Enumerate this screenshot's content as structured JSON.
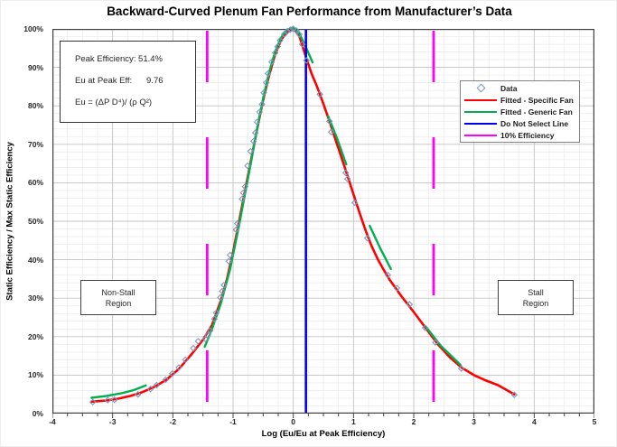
{
  "title": "Backward-Curved Plenum Fan Performance from Manufacturer’s Data",
  "annotations": {
    "peak_efficiency": "Peak Efficiency: 51.4%",
    "eu_at_peak": "Eu at Peak Eff:      9.76",
    "formula": "Eu = (ΔP D⁴)/ (ρ Q²)",
    "non_stall_line1": "Non-Stall",
    "non_stall_line2": "Region",
    "stall_line1": "Stall",
    "stall_line2": "Region"
  },
  "legend": {
    "items": [
      {
        "label": "Data",
        "marker": "diamond",
        "color": "#7e97bf"
      },
      {
        "label": "Fitted - Specific Fan",
        "marker": "line",
        "color": "#ff0000"
      },
      {
        "label": "Fitted - Generic Fan",
        "marker": "line",
        "color": "#00b050"
      },
      {
        "label": "Do Not Select Line",
        "marker": "line",
        "color": "#0000f0"
      },
      {
        "label": "10% Efficiency",
        "marker": "line",
        "color": "#ff00ff"
      }
    ]
  },
  "chart_data": {
    "type": "scatter",
    "title": "Backward-Curved Plenum Fan Performance from Manufacturer’s Data",
    "xlabel": "Log (Eu/Eu at Peak Efficiency)",
    "ylabel": "Static Efficiency / Max Static Efficiency",
    "xlim": [
      -4,
      5
    ],
    "ylim_percent": [
      0,
      100
    ],
    "x_ticks": [
      -4,
      -3,
      -2,
      -1,
      0,
      1,
      2,
      3,
      4,
      5
    ],
    "y_ticks": [
      "0%",
      "10%",
      "20%",
      "30%",
      "40%",
      "50%",
      "60%",
      "70%",
      "80%",
      "90%",
      "100%"
    ],
    "grid": {
      "major_x": 1,
      "minor_x": 0.25,
      "major_y": 10,
      "minor_y": 2,
      "major_color": "#c3c3c3",
      "minor_color": "#ececec"
    },
    "annotations": {
      "peak_efficiency_pct": 51.4,
      "eu_at_peak_eff": 9.76
    },
    "series": [
      {
        "name": "Data",
        "type": "scatter",
        "color": "#7e97bf",
        "points": [
          [
            -3.33,
            3.0
          ],
          [
            -3.08,
            3.5
          ],
          [
            -2.97,
            3.6
          ],
          [
            -2.58,
            5.0
          ],
          [
            -2.37,
            6.4
          ],
          [
            -2.27,
            7.4
          ],
          [
            -2.12,
            8.8
          ],
          [
            -2.01,
            10.4
          ],
          [
            -1.9,
            12.0
          ],
          [
            -1.79,
            14.0
          ],
          [
            -1.66,
            17.0
          ],
          [
            -1.58,
            18.8
          ],
          [
            -1.46,
            19.4
          ],
          [
            -1.42,
            20.4
          ],
          [
            -1.38,
            21.6
          ],
          [
            -1.31,
            24.6
          ],
          [
            -1.28,
            26.2
          ],
          [
            -1.21,
            30.2
          ],
          [
            -1.18,
            31.8
          ],
          [
            -1.15,
            33.4
          ],
          [
            -1.07,
            39.6
          ],
          [
            -1.05,
            41.2
          ],
          [
            -0.95,
            47.8
          ],
          [
            -0.93,
            49.4
          ],
          [
            -0.85,
            55.8
          ],
          [
            -0.83,
            57.4
          ],
          [
            -0.8,
            59.0
          ],
          [
            -0.76,
            64.4
          ],
          [
            -0.71,
            68.2
          ],
          [
            -0.66,
            70.8
          ],
          [
            -0.63,
            73.0
          ],
          [
            -0.6,
            75.8
          ],
          [
            -0.56,
            78.4
          ],
          [
            -0.52,
            80.4
          ],
          [
            -0.49,
            83.4
          ],
          [
            -0.45,
            86.0
          ],
          [
            -0.42,
            88.4
          ],
          [
            -0.36,
            91.4
          ],
          [
            -0.3,
            93.8
          ],
          [
            -0.26,
            95.4
          ],
          [
            -0.22,
            97.0
          ],
          [
            -0.15,
            98.6
          ],
          [
            -0.1,
            99.4
          ],
          [
            -0.05,
            99.8
          ],
          [
            0.0,
            100.0
          ],
          [
            0.05,
            99.6
          ],
          [
            0.1,
            98.6
          ],
          [
            0.15,
            96.0
          ],
          [
            0.22,
            91.8
          ],
          [
            0.44,
            83.0
          ],
          [
            0.6,
            76.0
          ],
          [
            0.63,
            73.2
          ],
          [
            0.87,
            62.6
          ],
          [
            0.9,
            61.0
          ],
          [
            1.02,
            54.8
          ],
          [
            1.23,
            45.6
          ],
          [
            1.57,
            36.0
          ],
          [
            1.72,
            32.6
          ],
          [
            1.93,
            28.4
          ],
          [
            2.19,
            22.3
          ],
          [
            2.36,
            18.5
          ],
          [
            2.79,
            11.7
          ],
          [
            3.67,
            4.9
          ]
        ]
      },
      {
        "name": "Fitted - Specific Fan",
        "type": "line",
        "color": "#ff0000",
        "width": 2.6,
        "points": [
          [
            -3.35,
            3.1
          ],
          [
            -3.1,
            3.4
          ],
          [
            -2.9,
            3.9
          ],
          [
            -2.7,
            4.6
          ],
          [
            -2.5,
            5.6
          ],
          [
            -2.3,
            7.0
          ],
          [
            -2.1,
            8.9
          ],
          [
            -1.9,
            11.6
          ],
          [
            -1.7,
            15.2
          ],
          [
            -1.5,
            19.2
          ],
          [
            -1.35,
            23.0
          ],
          [
            -1.2,
            29.5
          ],
          [
            -1.1,
            35.0
          ],
          [
            -1.0,
            42.0
          ],
          [
            -0.9,
            50.0
          ],
          [
            -0.8,
            58.0
          ],
          [
            -0.7,
            66.0
          ],
          [
            -0.6,
            74.0
          ],
          [
            -0.5,
            81.5
          ],
          [
            -0.4,
            88.0
          ],
          [
            -0.3,
            93.5
          ],
          [
            -0.2,
            97.2
          ],
          [
            -0.1,
            99.3
          ],
          [
            0.0,
            100.0
          ],
          [
            0.1,
            98.2
          ],
          [
            0.2,
            93.2
          ],
          [
            0.3,
            88.5
          ],
          [
            0.4,
            84.8
          ],
          [
            0.5,
            80.5
          ],
          [
            0.6,
            76.0
          ],
          [
            0.7,
            71.3
          ],
          [
            0.8,
            66.6
          ],
          [
            0.9,
            61.8
          ],
          [
            1.0,
            57.0
          ],
          [
            1.1,
            52.2
          ],
          [
            1.2,
            47.6
          ],
          [
            1.3,
            43.6
          ],
          [
            1.4,
            40.2
          ],
          [
            1.5,
            37.4
          ],
          [
            1.6,
            34.8
          ],
          [
            1.8,
            30.4
          ],
          [
            2.0,
            26.4
          ],
          [
            2.2,
            22.2
          ],
          [
            2.4,
            18.0
          ],
          [
            2.6,
            14.6
          ],
          [
            2.8,
            11.9
          ],
          [
            3.0,
            10.0
          ],
          [
            3.2,
            8.6
          ],
          [
            3.4,
            7.4
          ],
          [
            3.67,
            5.0
          ]
        ]
      },
      {
        "name": "Fitted - Generic Fan",
        "type": "multiline",
        "color": "#00b050",
        "width": 2.4,
        "segments": [
          [
            [
              -3.35,
              4.1
            ],
            [
              -3.1,
              4.6
            ],
            [
              -2.85,
              5.3
            ],
            [
              -2.65,
              6.1
            ],
            [
              -2.45,
              7.3
            ]
          ],
          [
            [
              -1.47,
              17.4
            ],
            [
              -1.35,
              22.0
            ],
            [
              -1.2,
              28.8
            ],
            [
              -1.05,
              37.5
            ],
            [
              -0.9,
              49.0
            ],
            [
              -0.8,
              57.2
            ],
            [
              -0.7,
              65.5
            ],
            [
              -0.6,
              74.2
            ],
            [
              -0.5,
              82.0
            ],
            [
              -0.4,
              88.8
            ],
            [
              -0.3,
              94.2
            ],
            [
              -0.2,
              97.8
            ],
            [
              -0.1,
              99.8
            ],
            [
              0.0,
              100.4
            ],
            [
              0.1,
              98.8
            ],
            [
              0.2,
              95.6
            ],
            [
              0.32,
              91.3
            ]
          ],
          [
            [
              0.58,
              77.3
            ],
            [
              0.72,
              71.8
            ],
            [
              0.88,
              64.8
            ]
          ],
          [
            [
              1.27,
              48.8
            ],
            [
              1.45,
              42.8
            ],
            [
              1.62,
              37.6
            ]
          ],
          [
            [
              2.2,
              22.6
            ],
            [
              2.45,
              17.6
            ],
            [
              2.78,
              12.6
            ]
          ]
        ]
      },
      {
        "name": "Do Not Select Line",
        "type": "vline",
        "color": "#0000f0",
        "width": 2.6,
        "x": 0.21,
        "dashed": false
      },
      {
        "name": "10% Efficiency",
        "type": "vline",
        "color": "#ff00ff",
        "width": 2.8,
        "x": [
          -1.43,
          2.33
        ],
        "dashed": true
      }
    ]
  }
}
